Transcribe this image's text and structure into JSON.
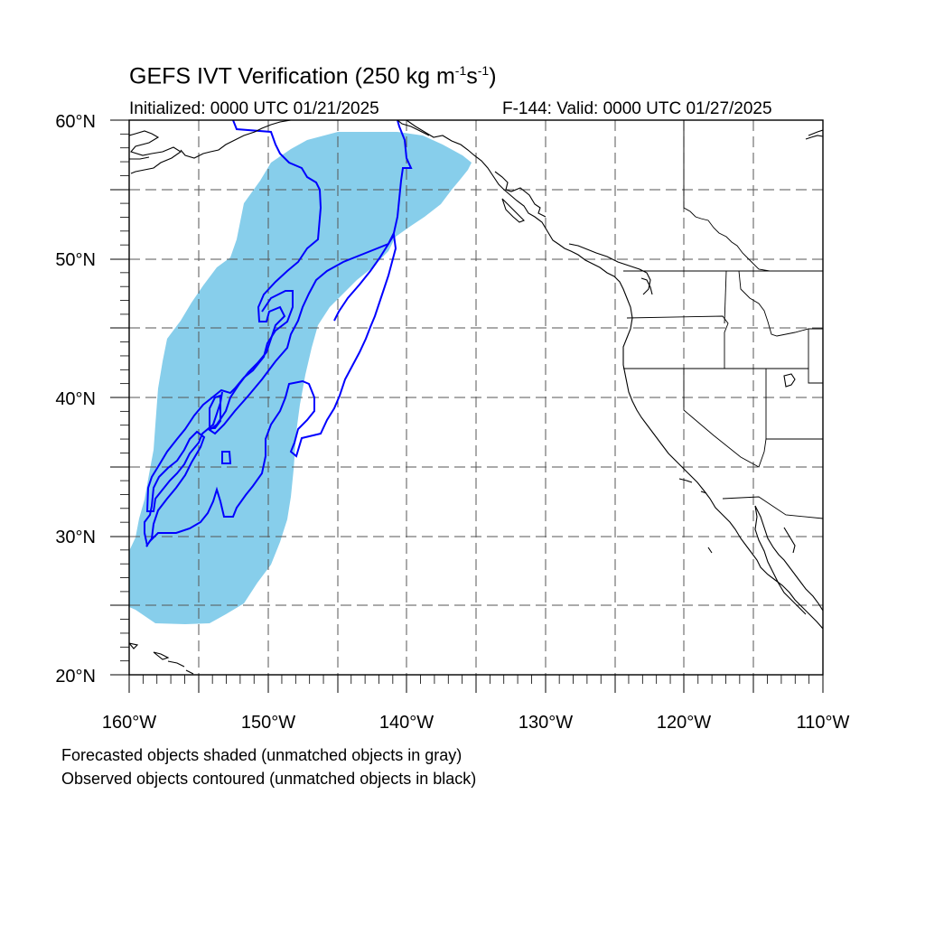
{
  "title": {
    "main": "GEFS IVT Verification (250 kg m",
    "sup1": "-1",
    "mid": "s",
    "sup2": "-1",
    "end": ")"
  },
  "initialized": "Initialized: 0000 UTC 01/21/2025",
  "valid": "F-144: Valid: 0000 UTC 01/27/2025",
  "footnotes": {
    "line1": "Forecasted objects shaded (unmatched objects in gray)",
    "line2": "Observed objects contoured (unmatched objects in black)"
  },
  "axes": {
    "lon_labels": [
      "160°W",
      "150°W",
      "140°W",
      "130°W",
      "120°W",
      "110°W"
    ],
    "lat_labels": [
      "20°N",
      "30°N",
      "40°N",
      "50°N",
      "60°N"
    ],
    "lon_range": [
      -160,
      -110
    ],
    "lat_range": [
      20,
      60
    ]
  },
  "colors": {
    "forecast_fill": "#87ceeb",
    "observed_contour": "#0000ff",
    "coastline": "#000000",
    "grid": "#555555"
  }
}
